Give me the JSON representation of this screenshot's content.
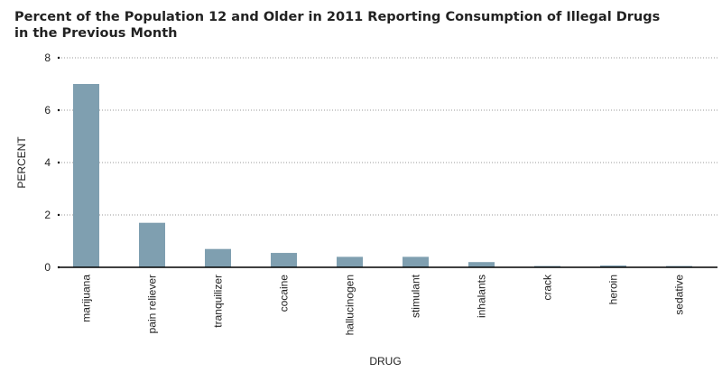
{
  "title_lines": [
    "Percent of the Population 12 and Older in 2011 Reporting Consumption of Illegal Drugs",
    "in the Previous Month"
  ],
  "colors": {
    "bar": "#7f9fb0",
    "grid": "#9a9a9a",
    "axis": "#000000"
  },
  "chart_data": {
    "type": "bar",
    "title": "Percent of the Population 12 and Older in 2011 Reporting Consumption of Illegal Drugs in the Previous Month",
    "xlabel": "DRUG",
    "ylabel": "PERCENT",
    "categories": [
      "marijuana",
      "pain reliever",
      "tranquilizer",
      "cocaine",
      "hallucinogen",
      "stimulant",
      "inhalants",
      "crack",
      "heroin",
      "sedative"
    ],
    "values": [
      7.0,
      1.7,
      0.7,
      0.55,
      0.4,
      0.4,
      0.2,
      0.05,
      0.07,
      0.05
    ],
    "ylim": [
      0,
      8
    ],
    "yticks": [
      "0",
      "2",
      "4",
      "6",
      "8"
    ],
    "grid": "horizontal dotted",
    "legend": "none"
  }
}
